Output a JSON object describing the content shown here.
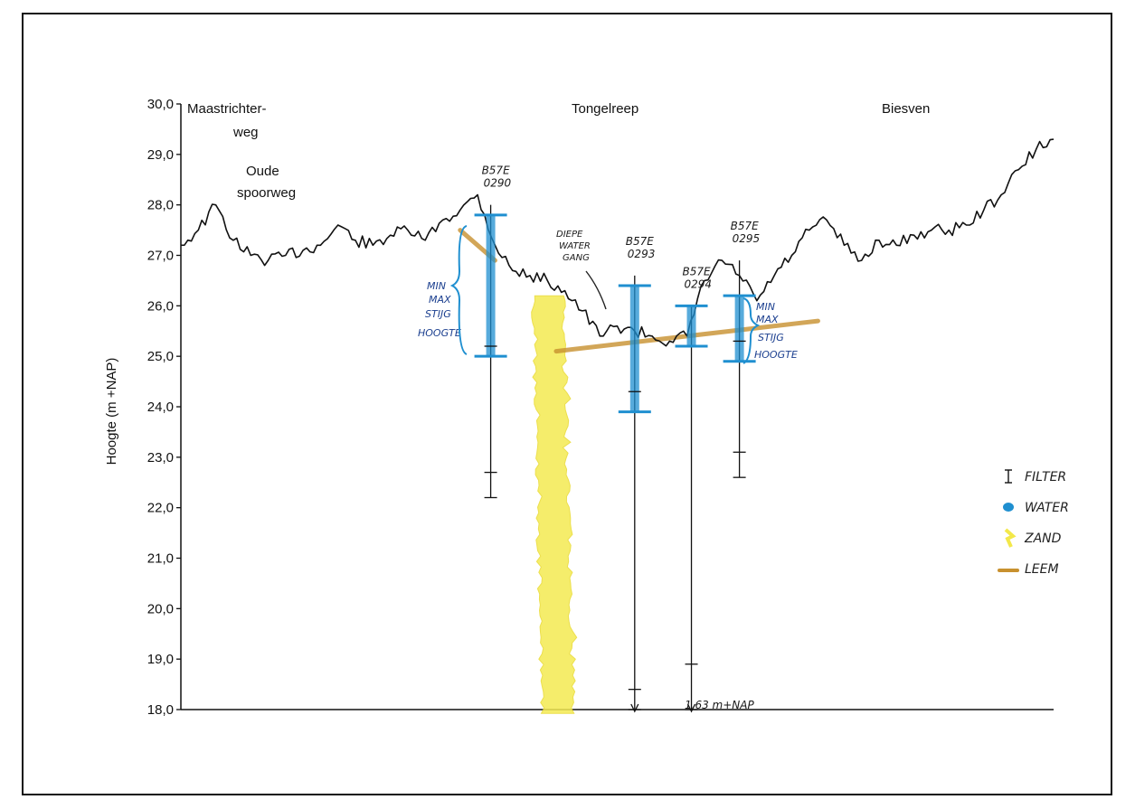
{
  "chart_data": {
    "type": "line",
    "title": "",
    "ylabel": "Hoogte (m +NAP)",
    "xlabel": "",
    "ylim": [
      18.0,
      30.0
    ],
    "yticks": [
      "30,0",
      "29,0",
      "28,0",
      "27,0",
      "26,0",
      "25,0",
      "24,0",
      "23,0",
      "22,0",
      "21,0",
      "20,0",
      "19,0",
      "18,0"
    ],
    "grid": false,
    "legend_position": "right",
    "places": [
      {
        "name": "Maastrichter-",
        "x": 0.0,
        "y": 30.0
      },
      {
        "name": "weg",
        "x": 0.05,
        "y": 29.6
      },
      {
        "name": "Oude",
        "x": 0.07,
        "y": 28.8
      },
      {
        "name": "spoorweg",
        "x": 0.08,
        "y": 28.3
      },
      {
        "name": "Tongelreep",
        "x": 0.52,
        "y": 30.0
      },
      {
        "name": "Biesven",
        "x": 0.82,
        "y": 30.0
      }
    ],
    "surface_profile": {
      "name": "maaiveld",
      "x": [
        0.0,
        0.02,
        0.04,
        0.06,
        0.08,
        0.1,
        0.12,
        0.14,
        0.16,
        0.18,
        0.2,
        0.22,
        0.24,
        0.26,
        0.28,
        0.3,
        0.32,
        0.34,
        0.36,
        0.38,
        0.4,
        0.42,
        0.44,
        0.46,
        0.48,
        0.5,
        0.52,
        0.54,
        0.56,
        0.58,
        0.6,
        0.62,
        0.64,
        0.66,
        0.68,
        0.7,
        0.72,
        0.74,
        0.76,
        0.78,
        0.8,
        0.82,
        0.84,
        0.86,
        0.88,
        0.9,
        0.92,
        0.94,
        0.96,
        0.98,
        1.0
      ],
      "y": [
        27.2,
        27.5,
        28.0,
        27.3,
        27.0,
        26.9,
        27.0,
        27.1,
        27.2,
        27.6,
        27.3,
        27.2,
        27.4,
        27.5,
        27.3,
        27.7,
        27.9,
        28.2,
        27.2,
        26.7,
        26.6,
        26.5,
        26.3,
        25.9,
        25.4,
        25.6,
        25.5,
        25.4,
        25.3,
        25.4,
        26.5,
        26.9,
        26.6,
        26.1,
        26.6,
        27.0,
        27.5,
        27.7,
        27.2,
        26.9,
        27.3,
        27.2,
        27.4,
        27.5,
        27.5,
        27.6,
        27.9,
        28.2,
        28.7,
        29.1,
        29.3
      ]
    },
    "wells": [
      {
        "label": "B57E 0290",
        "x": 0.355,
        "top": 28.0,
        "filters": [
          25.2,
          22.7
        ],
        "bottom": 22.2,
        "water_top": 27.8,
        "water_bottom": 25.0
      },
      {
        "label": "B57E 0293",
        "x": 0.52,
        "top": 26.6,
        "filters": [
          24.3,
          18.4
        ],
        "bottom": 18.0,
        "water_top": 26.4,
        "water_bottom": 23.9
      },
      {
        "label": "B57E 0294",
        "x": 0.585,
        "top": 26.0,
        "filters": [
          18.9
        ],
        "bottom": 18.0,
        "water_top": 26.0,
        "water_bottom": 25.2
      },
      {
        "label": "B57E 0295",
        "x": 0.64,
        "top": 26.9,
        "filters": [
          25.3,
          23.1
        ],
        "bottom": 22.6,
        "water_top": 26.2,
        "water_bottom": 24.9
      }
    ],
    "sand_column": {
      "x": 0.42,
      "top": 26.2,
      "bottom": 18.0
    },
    "loam_layers": [
      {
        "x": [
          0.32,
          0.36
        ],
        "y": [
          27.5,
          26.9
        ]
      },
      {
        "x": [
          0.43,
          0.73
        ],
        "y": [
          25.1,
          25.7
        ]
      }
    ],
    "annotations": {
      "diepe_water_gang": [
        "DIEPE",
        "WATER",
        "GANG"
      ],
      "min_max_left": [
        "MIN",
        "MAX",
        "STIJG",
        "HOOGTE"
      ],
      "min_max_right": [
        "MIN",
        "MAX",
        "STIJG",
        "HOOGTE"
      ],
      "bottom_note": "1.63 m+NAP"
    },
    "legend": [
      {
        "label": "FILTER",
        "symbol": "filter",
        "color": "#111111"
      },
      {
        "label": "WATER",
        "symbol": "water",
        "color": "#1f8fd0"
      },
      {
        "label": "ZAND",
        "symbol": "sand",
        "color": "#f3e84a"
      },
      {
        "label": "LEEM",
        "symbol": "loam",
        "color": "#c8912f"
      }
    ]
  }
}
